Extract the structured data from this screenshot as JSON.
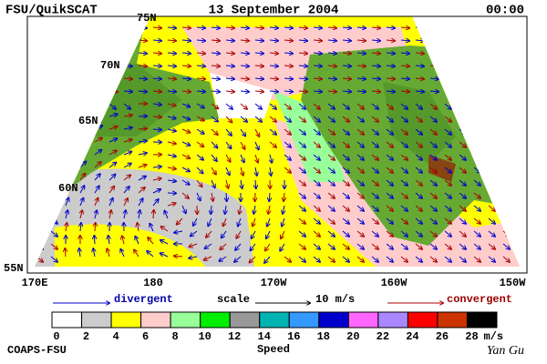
{
  "header": {
    "left": "FSU/QuikSCAT",
    "center": "13 September 2004",
    "right": "00:00"
  },
  "map": {
    "lat_labels": [
      "75N",
      "70N",
      "65N",
      "60N",
      "55N"
    ],
    "lon_labels": [
      "170E",
      "180",
      "170W",
      "160W",
      "150W"
    ]
  },
  "legend": {
    "divergent": "divergent",
    "scale": "scale",
    "scale_value": "10 m/s",
    "convergent": "convergent"
  },
  "colorbar": {
    "labels": [
      "0",
      "2",
      "4",
      "6",
      "8",
      "10",
      "12",
      "14",
      "16",
      "18",
      "20",
      "22",
      "24",
      "26",
      "28"
    ],
    "colors": [
      "#ffffff",
      "#cccccc",
      "#ffff00",
      "#ffcccc",
      "#99ff99",
      "#00ee00",
      "#999999",
      "#00b3b3",
      "#3399ff",
      "#0000cc",
      "#ff66ff",
      "#aa88ff",
      "#ff0000",
      "#cc3300",
      "#000000"
    ],
    "unit": "m/s",
    "title": "Speed"
  },
  "footer": {
    "left": "COAPS-FSU",
    "right": "Yan Gu"
  }
}
